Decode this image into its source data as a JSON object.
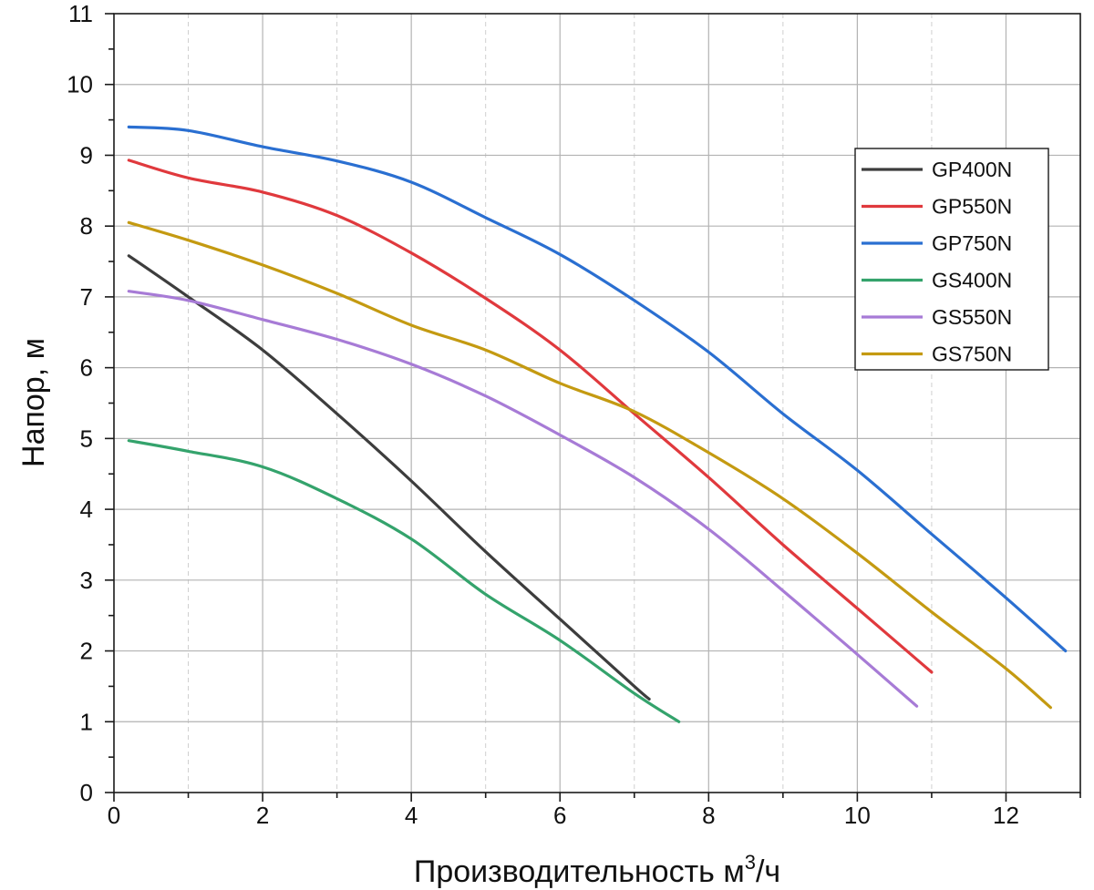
{
  "chart_data": {
    "type": "line",
    "title": "",
    "xlabel": "Производительность м",
    "xlabel_sup": "3",
    "xlabel_tail": "/ч",
    "ylabel": "Напор, м",
    "xlim": [
      0,
      13
    ],
    "ylim": [
      0,
      11
    ],
    "x_ticks": [
      "0",
      "2",
      "4",
      "6",
      "8",
      "10",
      "12"
    ],
    "y_ticks": [
      "0",
      "1",
      "2",
      "3",
      "4",
      "5",
      "6",
      "7",
      "8",
      "9",
      "10",
      "11"
    ],
    "grid": true,
    "legend_position": "top-right",
    "series": [
      {
        "name": "GP400N",
        "color": "#3d3d3d",
        "x": [
          0.2,
          1.0,
          2.0,
          3.0,
          4.0,
          5.0,
          6.0,
          7.0,
          7.2
        ],
        "y": [
          7.58,
          7.0,
          6.25,
          5.35,
          4.4,
          3.4,
          2.45,
          1.5,
          1.32
        ]
      },
      {
        "name": "GP550N",
        "color": "#e0393d",
        "x": [
          0.2,
          1.0,
          2.0,
          3.0,
          4.0,
          5.0,
          6.0,
          7.0,
          8.0,
          9.0,
          10.0,
          11.0
        ],
        "y": [
          8.93,
          8.68,
          8.48,
          8.15,
          7.62,
          6.98,
          6.25,
          5.35,
          4.45,
          3.5,
          2.6,
          1.7
        ]
      },
      {
        "name": "GP750N",
        "color": "#2a6fd1",
        "x": [
          0.2,
          1.0,
          2.0,
          3.0,
          4.0,
          5.0,
          6.0,
          7.0,
          8.0,
          9.0,
          10.0,
          11.0,
          12.0,
          12.8
        ],
        "y": [
          9.4,
          9.35,
          9.12,
          8.92,
          8.62,
          8.12,
          7.6,
          6.95,
          6.22,
          5.35,
          4.55,
          3.65,
          2.75,
          2.0
        ]
      },
      {
        "name": "GS400N",
        "color": "#34a36c",
        "x": [
          0.2,
          1.0,
          2.0,
          3.0,
          4.0,
          5.0,
          6.0,
          7.0,
          7.6
        ],
        "y": [
          4.97,
          4.82,
          4.6,
          4.15,
          3.58,
          2.8,
          2.15,
          1.4,
          1.0
        ]
      },
      {
        "name": "GS550N",
        "color": "#a77bd6",
        "x": [
          0.2,
          1.0,
          2.0,
          3.0,
          4.0,
          5.0,
          6.0,
          7.0,
          8.0,
          9.0,
          10.0,
          10.8
        ],
        "y": [
          7.08,
          6.95,
          6.68,
          6.4,
          6.05,
          5.6,
          5.05,
          4.45,
          3.72,
          2.85,
          1.95,
          1.22
        ]
      },
      {
        "name": "GS750N",
        "color": "#c49a11",
        "x": [
          0.2,
          1.0,
          2.0,
          3.0,
          4.0,
          5.0,
          6.0,
          7.0,
          8.0,
          9.0,
          10.0,
          11.0,
          12.0,
          12.6
        ],
        "y": [
          8.05,
          7.8,
          7.45,
          7.05,
          6.6,
          6.25,
          5.78,
          5.38,
          4.8,
          4.15,
          3.38,
          2.55,
          1.75,
          1.2
        ]
      }
    ]
  }
}
